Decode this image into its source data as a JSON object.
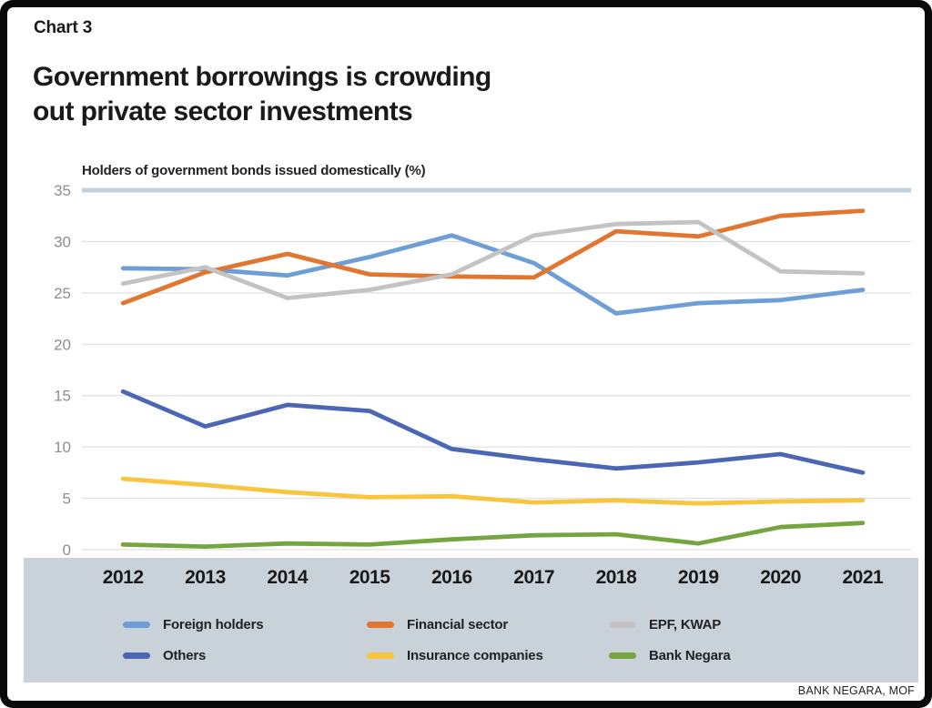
{
  "card": {
    "chart_label": "Chart 3",
    "title": "Government borrowings is crowding\nout private sector investments",
    "source": "BANK NEGARA, MOF"
  },
  "chart_data": {
    "type": "line",
    "title": "Holders of government bonds issued domestically (%)",
    "categories": [
      "2012",
      "2013",
      "2014",
      "2015",
      "2016",
      "2017",
      "2018",
      "2019",
      "2020",
      "2021"
    ],
    "ylim": [
      0,
      35
    ],
    "yticks": [
      0,
      5,
      10,
      15,
      20,
      25,
      30,
      35
    ],
    "grid": "horizontal",
    "legend_position": "bottom",
    "series": [
      {
        "name": "Foreign holders",
        "color": "#6D9ED6",
        "values": [
          27.4,
          27.3,
          26.7,
          28.5,
          30.6,
          27.9,
          23.0,
          24.0,
          24.3,
          25.3
        ]
      },
      {
        "name": "Financial sector",
        "color": "#E0762F",
        "values": [
          24.0,
          27.0,
          28.8,
          26.8,
          26.6,
          26.5,
          31.0,
          30.5,
          32.5,
          33.0
        ]
      },
      {
        "name": "EPF, KWAP",
        "color": "#C3C3C3",
        "values": [
          25.9,
          27.5,
          24.5,
          25.3,
          26.8,
          30.6,
          31.7,
          31.9,
          27.1,
          26.9
        ]
      },
      {
        "name": "Others",
        "color": "#4A66B4",
        "values": [
          15.4,
          12.0,
          14.1,
          13.5,
          9.8,
          8.8,
          7.9,
          8.5,
          9.3,
          7.5
        ]
      },
      {
        "name": "Insurance companies",
        "color": "#F9C53D",
        "values": [
          6.9,
          6.3,
          5.6,
          5.1,
          5.2,
          4.6,
          4.8,
          4.5,
          4.7,
          4.8
        ]
      },
      {
        "name": "Bank Negara",
        "color": "#74A53F",
        "values": [
          0.5,
          0.3,
          0.6,
          0.5,
          1.0,
          1.4,
          1.5,
          0.6,
          2.2,
          2.6
        ]
      }
    ]
  },
  "palette": {
    "frame": "#0A0A0A",
    "top_rule": "#C2D1DC",
    "gridline": "#E1E1E1",
    "band_background": "#C9D2D9",
    "tick_label": "#8F8F8F",
    "text": "#1A1A1A"
  }
}
